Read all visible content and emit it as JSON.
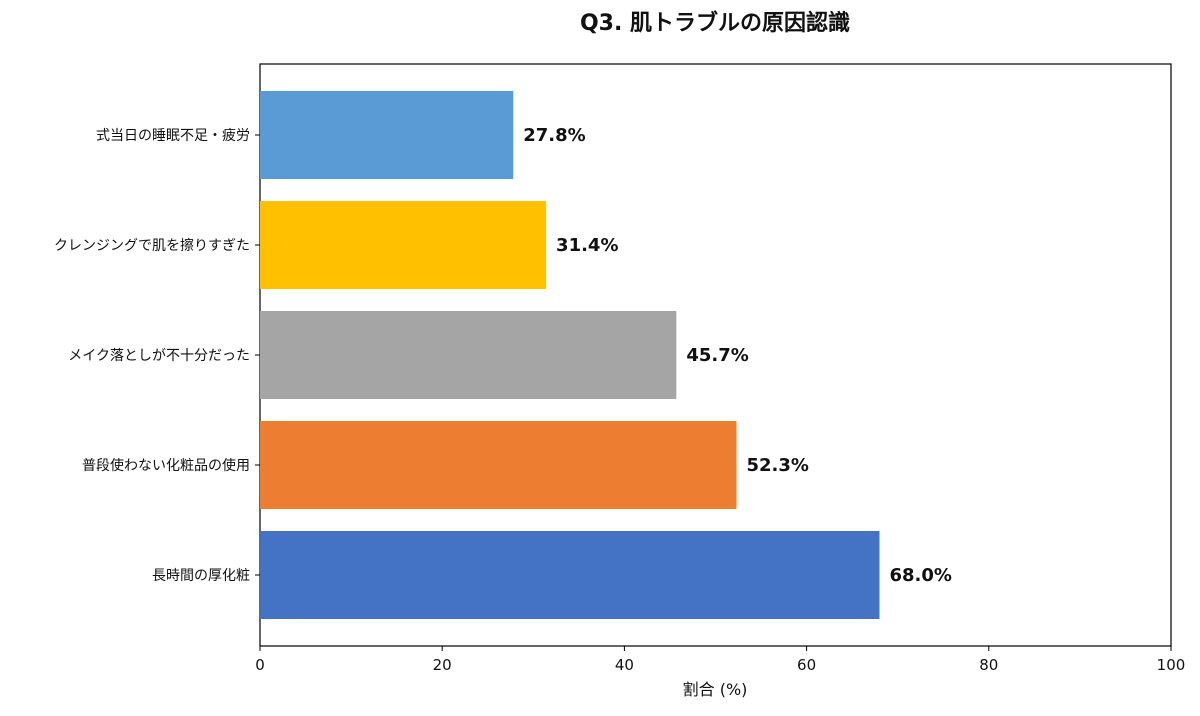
{
  "chart_data": {
    "type": "bar",
    "orientation": "horizontal",
    "title": "Q3. 肌トラブルの原因認識",
    "xlabel": "割合 (%)",
    "ylabel": "",
    "xlim": [
      0,
      100
    ],
    "xticks": [
      0,
      20,
      40,
      60,
      80,
      100
    ],
    "xtick_labels": [
      "0",
      "20",
      "40",
      "60",
      "80",
      "100"
    ],
    "grid": false,
    "categories": [
      "式当日の睡眠不足・疲労",
      "クレンジングで肌を擦りすぎた",
      "メイク落としが不十分だった",
      "普段使わない化粧品の使用",
      "長時間の厚化粧"
    ],
    "values": [
      27.8,
      31.4,
      45.7,
      52.3,
      68.0
    ],
    "value_labels": [
      "27.8%",
      "31.4%",
      "45.7%",
      "52.3%",
      "68.0%"
    ],
    "colors": [
      "#5B9BD5",
      "#FFC000",
      "#A5A5A5",
      "#ED7D31",
      "#4472C4"
    ]
  }
}
